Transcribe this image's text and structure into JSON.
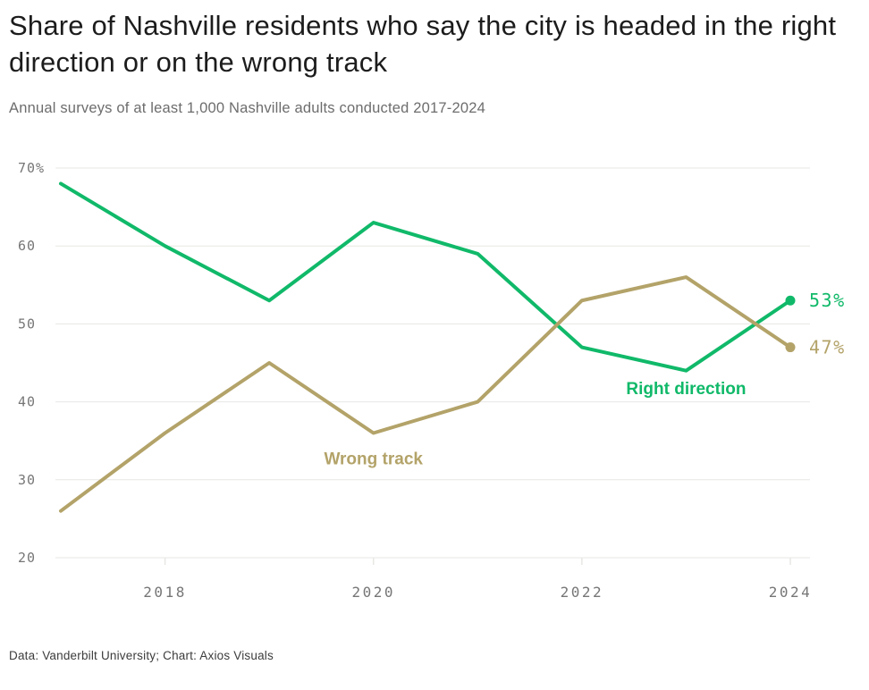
{
  "footer": {
    "source": "Data: Vanderbilt University; Chart: Axios Visuals"
  },
  "chart_data": {
    "type": "line",
    "title": "Share of Nashville residents who say the city is headed in the right direction or on the wrong track",
    "subtitle": "Annual surveys of at least 1,000 Nashville adults conducted 2017-2024",
    "x": [
      2017,
      2018,
      2019,
      2020,
      2021,
      2022,
      2023,
      2024
    ],
    "series": [
      {
        "name": "Right direction",
        "color": "#10b969",
        "values": [
          68,
          60,
          53,
          63,
          59,
          47,
          44,
          53
        ],
        "end_label": "53%"
      },
      {
        "name": "Wrong track",
        "color": "#b3a369",
        "values": [
          26,
          36,
          45,
          36,
          40,
          53,
          56,
          47
        ],
        "end_label": "47%"
      }
    ],
    "annotations": [
      {
        "label": "Right direction",
        "x": 2023,
        "y": 41,
        "color": "#10b969"
      },
      {
        "label": "Wrong track",
        "x": 2020,
        "y": 32,
        "color": "#b3a369"
      }
    ],
    "y_ticks": [
      {
        "value": 70,
        "label": "70%"
      },
      {
        "value": 60,
        "label": "60"
      },
      {
        "value": 50,
        "label": "50"
      },
      {
        "value": 40,
        "label": "40"
      },
      {
        "value": 30,
        "label": "30"
      },
      {
        "value": 20,
        "label": "20"
      }
    ],
    "x_ticks": [
      {
        "value": 2018,
        "label": "2018"
      },
      {
        "value": 2020,
        "label": "2020"
      },
      {
        "value": 2022,
        "label": "2022"
      },
      {
        "value": 2024,
        "label": "2024"
      }
    ],
    "xlim": [
      2017,
      2024
    ],
    "ylim": [
      20,
      70
    ],
    "grid": "horizontal",
    "styles": {
      "grid_color": "#e7e7e4",
      "tick_color": "#767676",
      "line_width": 4
    }
  }
}
